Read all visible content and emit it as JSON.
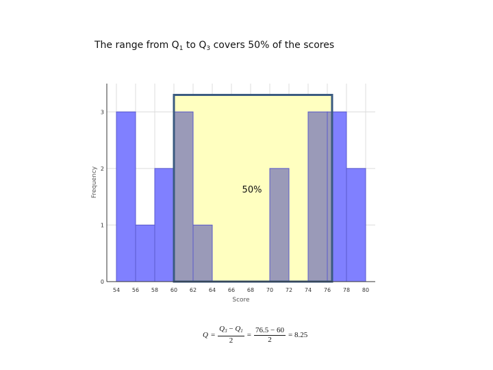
{
  "slide": {
    "title_prefix": "The range from Q",
    "title_sub1": "1",
    "title_mid": " to Q",
    "title_sub3": "3",
    "title_suffix": " covers 50% of the scores"
  },
  "chart_data": {
    "type": "bar",
    "title": "",
    "xlabel": "Score",
    "ylabel": "Frequency",
    "categories": [
      "54",
      "56",
      "58",
      "60",
      "62",
      "64",
      "66",
      "68",
      "70",
      "72",
      "74",
      "76",
      "78",
      "80"
    ],
    "x_ticks": [
      54,
      56,
      58,
      60,
      62,
      64,
      66,
      68,
      70,
      72,
      74,
      76,
      78,
      80
    ],
    "y_ticks": [
      0,
      1,
      2,
      3
    ],
    "bars": [
      {
        "x0": 54,
        "x1": 56,
        "value": 3
      },
      {
        "x0": 56,
        "x1": 58,
        "value": 1
      },
      {
        "x0": 58,
        "x1": 60,
        "value": 2
      },
      {
        "x0": 60,
        "x1": 62,
        "value": 3
      },
      {
        "x0": 62,
        "x1": 64,
        "value": 1
      },
      {
        "x0": 64,
        "x1": 66,
        "value": 0
      },
      {
        "x0": 66,
        "x1": 68,
        "value": 0
      },
      {
        "x0": 68,
        "x1": 70,
        "value": 0
      },
      {
        "x0": 70,
        "x1": 72,
        "value": 2
      },
      {
        "x0": 72,
        "x1": 74,
        "value": 0
      },
      {
        "x0": 74,
        "x1": 76,
        "value": 3
      },
      {
        "x0": 76,
        "x1": 78,
        "value": 3
      },
      {
        "x0": 78,
        "x1": 80,
        "value": 2
      }
    ],
    "xlim": [
      53,
      81
    ],
    "ylim": [
      0,
      3.5
    ],
    "grid": true,
    "iqr_box": {
      "q1": 60,
      "q3": 76.5,
      "label": "50%",
      "fill": "#ffffc0",
      "stroke": "#3a5a80"
    },
    "colors": {
      "bar": "#8080ff",
      "bar_stroke": "#5a5acc",
      "overlap": "#9a9ab8",
      "grid": "#dcdcdc"
    }
  },
  "formula": {
    "lhs": "Q",
    "eq": "=",
    "num_a": "Q",
    "num_a_sub": "3",
    "minus": " − ",
    "num_b": "Q",
    "num_b_sub": "1",
    "den": "2",
    "num_2": "76.5 − 60",
    "den_2": "2",
    "result": "= 8.25"
  }
}
